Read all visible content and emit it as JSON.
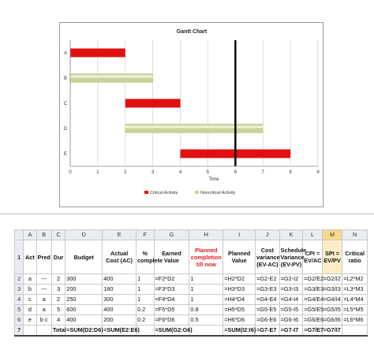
{
  "chart": {
    "title": "Gantt Chart",
    "xlabel": "Time",
    "legend": {
      "critical": "Critical Activity",
      "noncritical": "Noncritical Activity"
    }
  },
  "chart_data": {
    "type": "bar",
    "orientation": "horizontal-gantt",
    "title": "Gantt Chart",
    "xlabel": "Time",
    "ylabel": "",
    "xlim": [
      0,
      9
    ],
    "xticks": [
      0,
      1,
      2,
      3,
      4,
      5,
      6,
      7,
      8,
      9
    ],
    "categories": [
      "A",
      "B",
      "C",
      "D",
      "E"
    ],
    "tasks": [
      {
        "name": "A",
        "start": 0,
        "end": 2,
        "type": "critical"
      },
      {
        "name": "B",
        "start": 0,
        "end": 3,
        "type": "noncritical"
      },
      {
        "name": "C",
        "start": 2,
        "end": 4,
        "type": "critical"
      },
      {
        "name": "D",
        "start": 2,
        "end": 7,
        "type": "noncritical"
      },
      {
        "name": "E",
        "start": 4,
        "end": 8,
        "type": "critical"
      }
    ],
    "status_line": 6,
    "grid": true,
    "legend_position": "bottom",
    "colors": {
      "critical": "#e01010",
      "noncritical": "#c8d49a",
      "statusline": "#000000",
      "grid": "#cfcfcf"
    }
  },
  "sheet": {
    "col_letters": [
      "",
      "A",
      "B",
      "C",
      "D",
      "E",
      "F",
      "G",
      "H",
      "I",
      "J",
      "K",
      "L",
      "M",
      "N"
    ],
    "selected_col": "M",
    "header_row": {
      "num": "1",
      "cells": [
        "Act",
        "Pred",
        "Dur",
        "Budget",
        "Actual Cost (AC)",
        "% complete",
        "Earned Value",
        "Planned completion till now",
        "Planned Value",
        "Cost variance (EV-AC)",
        "Schedule Variance (EV-PV)",
        "CPI = EV/AC",
        "SPI = EV/PV",
        "Critical ratio"
      ]
    },
    "rows": [
      {
        "num": "2",
        "cells": [
          "a",
          "---",
          "2",
          "300",
          "400",
          "1",
          "=F2*D2",
          "1",
          "=H2*D2",
          "=G2-E2",
          "=G2-I2",
          "=G2/E2",
          "=G2/I2",
          "=L2*M2"
        ]
      },
      {
        "num": "3",
        "cells": [
          "b",
          "---",
          "3",
          "200",
          "180",
          "1",
          "=F3*D3",
          "1",
          "=H3*D3",
          "=G3-E3",
          "=G3-I3",
          "=G3/E3",
          "=G3/I3",
          "=L3*M3"
        ]
      },
      {
        "num": "4",
        "cells": [
          "c",
          "a",
          "2",
          "250",
          "300",
          "1",
          "=F4*D4",
          "1",
          "=H4*D4",
          "=G4-E4",
          "=G4-I4",
          "=G4/E4",
          "=G4/I4",
          "=L4*M4"
        ]
      },
      {
        "num": "5",
        "cells": [
          "d",
          "a",
          "5",
          "600",
          "400",
          "0.2",
          "=F5*D5",
          "0.8",
          "=H5*D5",
          "=G5-E5",
          "=G5-I5",
          "=G5/E5",
          "=G5/I5",
          "=L5*M5"
        ]
      },
      {
        "num": "6",
        "cells": [
          "e",
          "b c",
          "4",
          "400",
          "200",
          "0.2",
          "=F6*D6",
          "0.5",
          "=H6*D6",
          "=G6-E6",
          "=G6-I6",
          "=G6/E6",
          "=G6/I6",
          "=L6*M6"
        ]
      }
    ],
    "total_row": {
      "num": "7",
      "label": "Total",
      "budget": "=SUM(D2:D6)",
      "ac": "=SUM(E2:E6)",
      "ev": "=SUM(G2:G6)",
      "pv": "=SUM(I2:I6)",
      "cv": "=G7-E7",
      "sv": "=G7-I7",
      "cpi": "=G7/E7",
      "spi": "=G7/I7"
    }
  }
}
